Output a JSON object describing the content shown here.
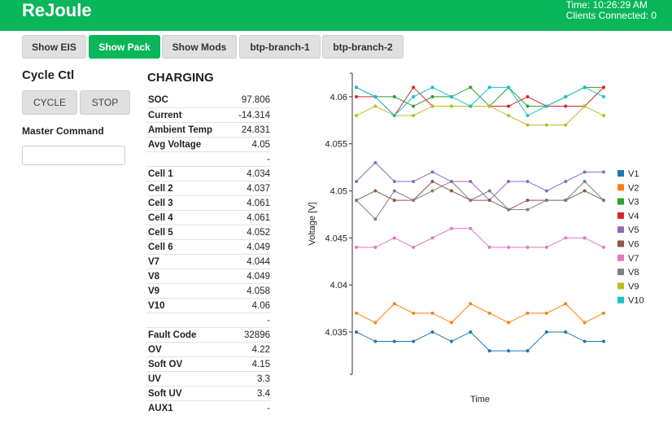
{
  "header": {
    "title": "ReJoule",
    "time": "Time: 10:26:29 AM",
    "clients": "Clients Connected: 0",
    "color": "#0ab65a"
  },
  "nav": {
    "tabs": [
      {
        "label": "Show EIS",
        "active": false
      },
      {
        "label": "Show Pack",
        "active": true
      },
      {
        "label": "Show Mods",
        "active": false
      },
      {
        "label": "btp-branch-1",
        "active": false
      },
      {
        "label": "btp-branch-2",
        "active": false
      }
    ]
  },
  "cycle": {
    "title": "Cycle Ctl",
    "cycle_label": "CYCLE",
    "stop_label": "STOP",
    "master_label": "Master Command",
    "master_value": ""
  },
  "pack": {
    "status": "CHARGING",
    "rows": [
      {
        "key": "SOC",
        "value": "97.806"
      },
      {
        "key": "Current",
        "value": "-14.314"
      },
      {
        "key": "Ambient Temp",
        "value": "24.831"
      },
      {
        "key": "Avg Voltage",
        "value": "4.05"
      },
      {
        "key": "",
        "value": "-"
      },
      {
        "key": "Cell 1",
        "value": "4.034"
      },
      {
        "key": "Cell 2",
        "value": "4.037"
      },
      {
        "key": "Cell 3",
        "value": "4.061"
      },
      {
        "key": "Cell 4",
        "value": "4.061"
      },
      {
        "key": "Cell 5",
        "value": "4.052"
      },
      {
        "key": "Cell 6",
        "value": "4.049"
      },
      {
        "key": "V7",
        "value": "4.044"
      },
      {
        "key": "V8",
        "value": "4.049"
      },
      {
        "key": "V9",
        "value": "4.058"
      },
      {
        "key": "V10",
        "value": "4.06"
      },
      {
        "key": "",
        "value": "-"
      },
      {
        "key": "Fault Code",
        "value": "32896"
      },
      {
        "key": "OV",
        "value": "4.22"
      },
      {
        "key": "Soft OV",
        "value": "4.15"
      },
      {
        "key": "UV",
        "value": "3.3"
      },
      {
        "key": "Soft UV",
        "value": "3.4"
      },
      {
        "key": "AUX1",
        "value": "-"
      }
    ]
  },
  "chart_data": {
    "type": "line",
    "xlabel": "Time",
    "ylabel": "Voltage [V]",
    "ylim": [
      4.0305,
      4.0625
    ],
    "yticks": [
      "4.035",
      "4.04",
      "4.045",
      "4.05",
      "4.055",
      "4.06"
    ],
    "ytick_values": [
      4.035,
      4.04,
      4.045,
      4.05,
      4.055,
      4.06
    ],
    "x": [
      1,
      2,
      3,
      4,
      5,
      6,
      7,
      8,
      9,
      10,
      11,
      12,
      13,
      14
    ],
    "legend_position": "right",
    "series": [
      {
        "name": "V1",
        "color": "#1f77b4",
        "values": [
          4.035,
          4.034,
          4.034,
          4.034,
          4.035,
          4.034,
          4.035,
          4.033,
          4.033,
          4.033,
          4.035,
          4.035,
          4.034,
          4.034
        ]
      },
      {
        "name": "V2",
        "color": "#ff7f0e",
        "values": [
          4.037,
          4.036,
          4.038,
          4.037,
          4.037,
          4.036,
          4.038,
          4.037,
          4.036,
          4.037,
          4.037,
          4.038,
          4.036,
          4.037
        ]
      },
      {
        "name": "V3",
        "color": "#2ca02c",
        "values": [
          4.061,
          4.06,
          4.06,
          4.059,
          4.06,
          4.06,
          4.061,
          4.059,
          4.061,
          4.059,
          4.059,
          4.06,
          4.061,
          4.061
        ]
      },
      {
        "name": "V4",
        "color": "#d62728",
        "values": [
          4.06,
          4.06,
          4.058,
          4.061,
          4.059,
          4.059,
          4.059,
          4.059,
          4.059,
          4.06,
          4.059,
          4.059,
          4.059,
          4.061
        ]
      },
      {
        "name": "V5",
        "color": "#9467bd",
        "values": [
          4.051,
          4.053,
          4.051,
          4.051,
          4.052,
          4.051,
          4.051,
          4.049,
          4.051,
          4.051,
          4.05,
          4.051,
          4.052,
          4.052
        ]
      },
      {
        "name": "V6",
        "color": "#8c564b",
        "values": [
          4.049,
          4.05,
          4.049,
          4.049,
          4.051,
          4.05,
          4.049,
          4.049,
          4.048,
          4.049,
          4.049,
          4.049,
          4.05,
          4.049
        ]
      },
      {
        "name": "V7",
        "color": "#e377c2",
        "values": [
          4.044,
          4.044,
          4.045,
          4.044,
          4.045,
          4.046,
          4.046,
          4.044,
          4.044,
          4.044,
          4.044,
          4.045,
          4.045,
          4.044
        ]
      },
      {
        "name": "V8",
        "color": "#7f7f7f",
        "values": [
          4.049,
          4.047,
          4.05,
          4.049,
          4.05,
          4.051,
          4.049,
          4.05,
          4.048,
          4.048,
          4.049,
          4.049,
          4.051,
          4.049
        ]
      },
      {
        "name": "V9",
        "color": "#bcbd22",
        "values": [
          4.058,
          4.059,
          4.058,
          4.058,
          4.059,
          4.059,
          4.059,
          4.059,
          4.058,
          4.057,
          4.057,
          4.057,
          4.059,
          4.058
        ]
      },
      {
        "name": "V10",
        "color": "#17becf",
        "values": [
          4.061,
          4.06,
          4.058,
          4.06,
          4.061,
          4.06,
          4.059,
          4.061,
          4.061,
          4.058,
          4.059,
          4.06,
          4.061,
          4.06
        ]
      }
    ]
  }
}
